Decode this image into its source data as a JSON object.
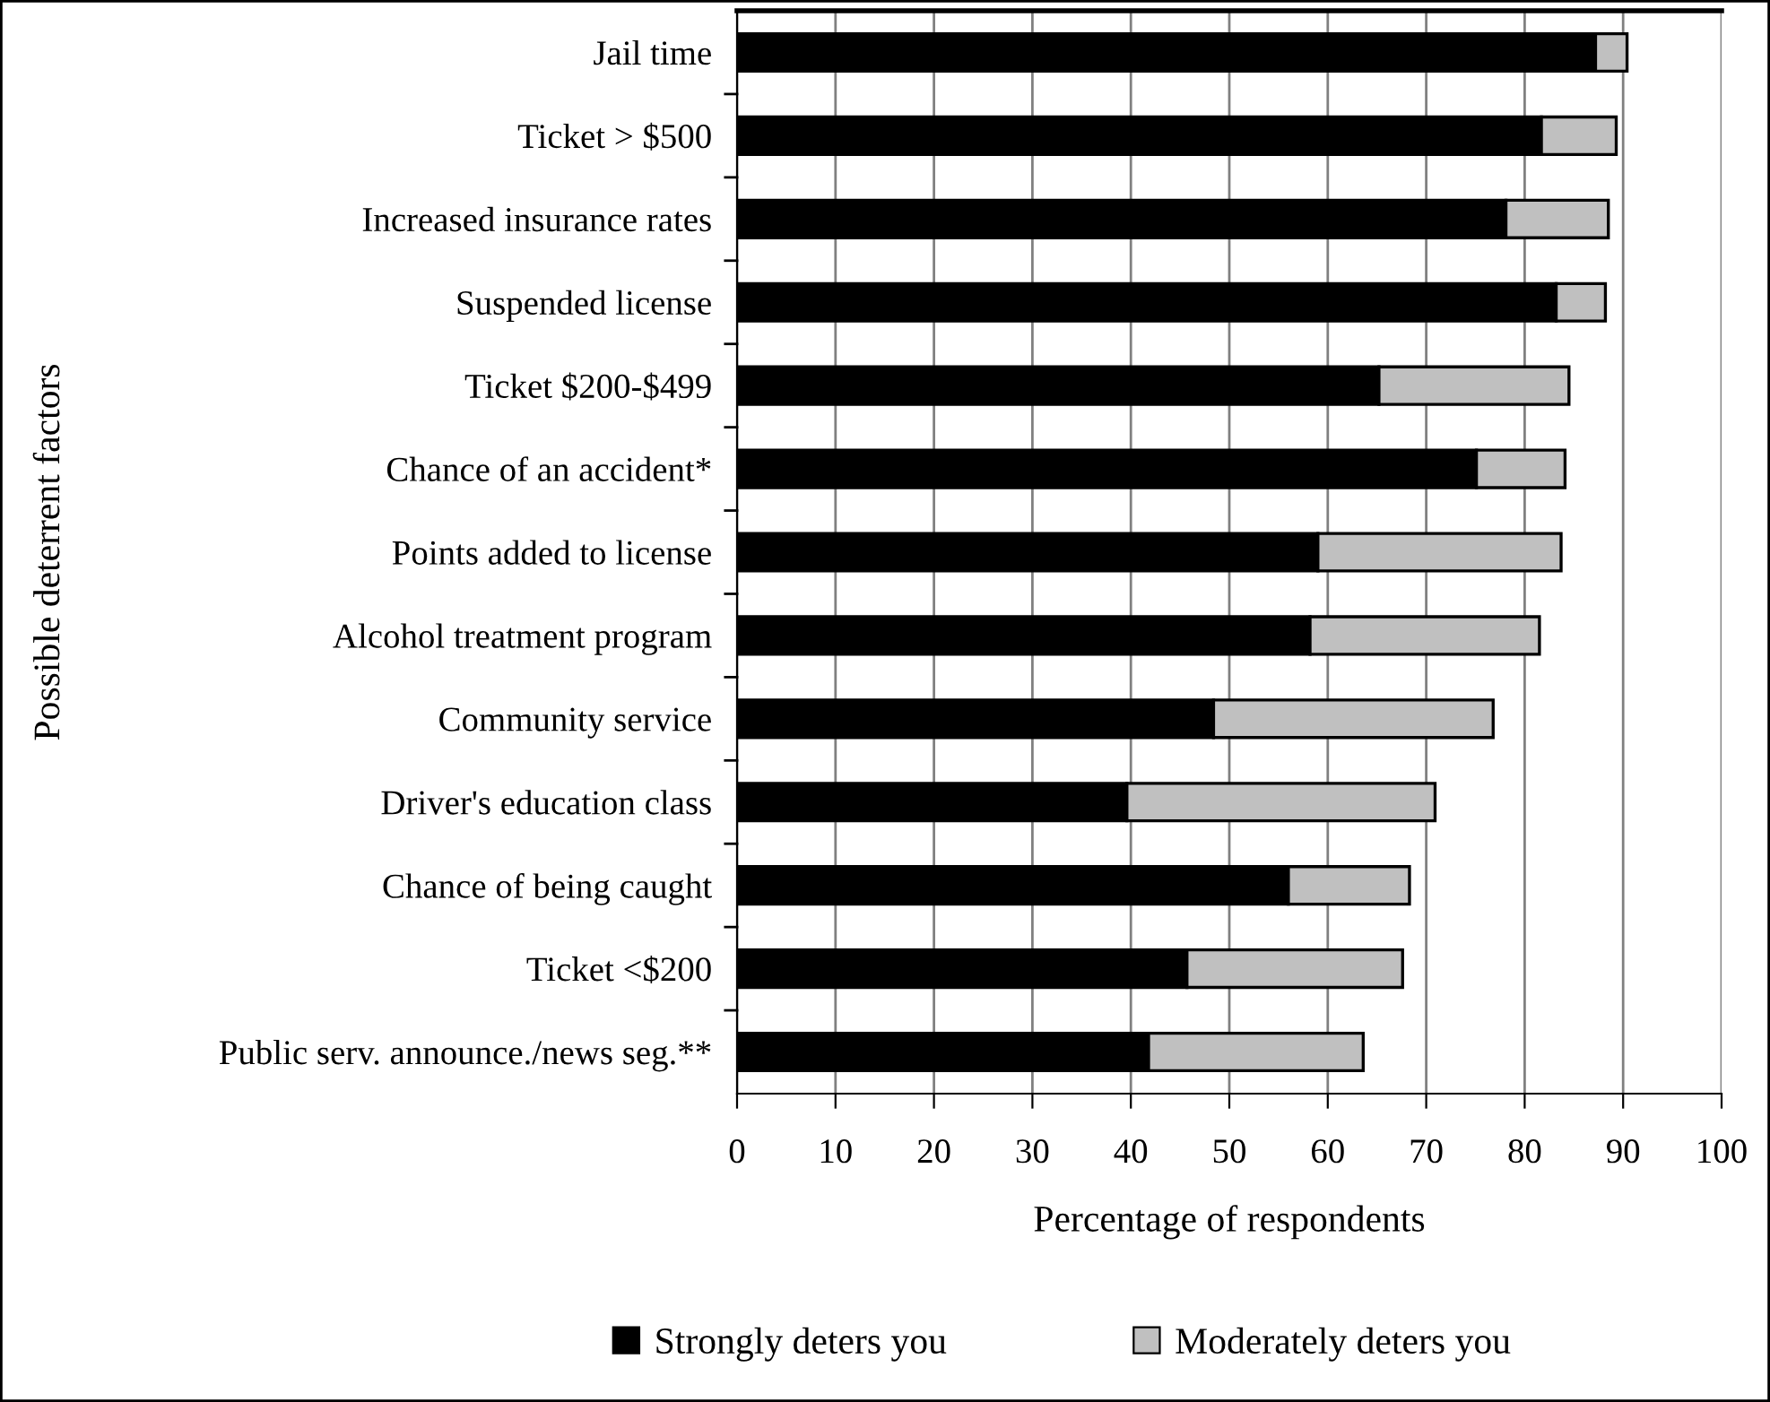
{
  "chart_data": {
    "type": "bar",
    "orientation": "horizontal",
    "stacked": true,
    "ylabel": "Possible deterrent factors",
    "xlabel": "Percentage of respondents",
    "categories": [
      "Jail time",
      "Ticket > $500",
      "Increased insurance rates",
      "Suspended license",
      "Ticket $200-$499",
      "Chance of an accident*",
      "Points added to license",
      "Alcohol treatment program",
      "Community service",
      "Driver's education class",
      "Chance of being caught",
      "Ticket <$200",
      "Public serv. announce./news seg.**"
    ],
    "series": [
      {
        "name": "Strongly deters you",
        "color": "#000000",
        "values": [
          87.2,
          81.7,
          78.1,
          83.2,
          65.2,
          75.1,
          59.0,
          58.2,
          48.4,
          39.6,
          56.0,
          45.7,
          41.8
        ]
      },
      {
        "name": "Moderately deters you",
        "color": "#c0c0c0",
        "values": [
          3.2,
          7.6,
          10.4,
          5.0,
          19.3,
          9.0,
          24.7,
          23.3,
          28.4,
          31.3,
          12.3,
          21.9,
          21.8
        ]
      }
    ],
    "xlim": [
      0,
      100
    ],
    "xticks": [
      0,
      10,
      20,
      30,
      40,
      50,
      60,
      70,
      80,
      90,
      100
    ],
    "grid": "x",
    "legend": "bottom"
  }
}
